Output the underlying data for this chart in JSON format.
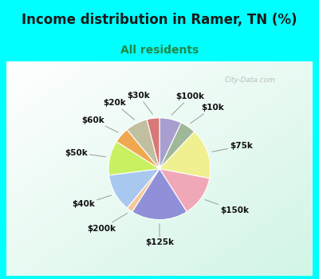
{
  "title": "Income distribution in Ramer, TN (%)",
  "subtitle": "All residents",
  "bg_cyan": "#00FFFF",
  "watermark": "City-Data.com",
  "segments": [
    {
      "label": "$100k",
      "value": 7,
      "color": "#a89fd0"
    },
    {
      "label": "$10k",
      "value": 5,
      "color": "#a0b89a"
    },
    {
      "label": "$75k",
      "value": 16,
      "color": "#f0f090"
    },
    {
      "label": "$150k",
      "value": 13,
      "color": "#f0a8b8"
    },
    {
      "label": "$125k",
      "value": 18,
      "color": "#9090d8"
    },
    {
      "label": "$200k",
      "value": 2,
      "color": "#f5c89a"
    },
    {
      "label": "$40k",
      "value": 12,
      "color": "#a8c8f0"
    },
    {
      "label": "$50k",
      "value": 11,
      "color": "#c8f060"
    },
    {
      "label": "$60k",
      "value": 5,
      "color": "#f0a850"
    },
    {
      "label": "$20k",
      "value": 7,
      "color": "#c0bfa0"
    },
    {
      "label": "$30k",
      "value": 4,
      "color": "#d87878"
    }
  ],
  "title_fontsize": 12,
  "subtitle_fontsize": 10,
  "label_fontsize": 7.5,
  "start_angle": 90
}
